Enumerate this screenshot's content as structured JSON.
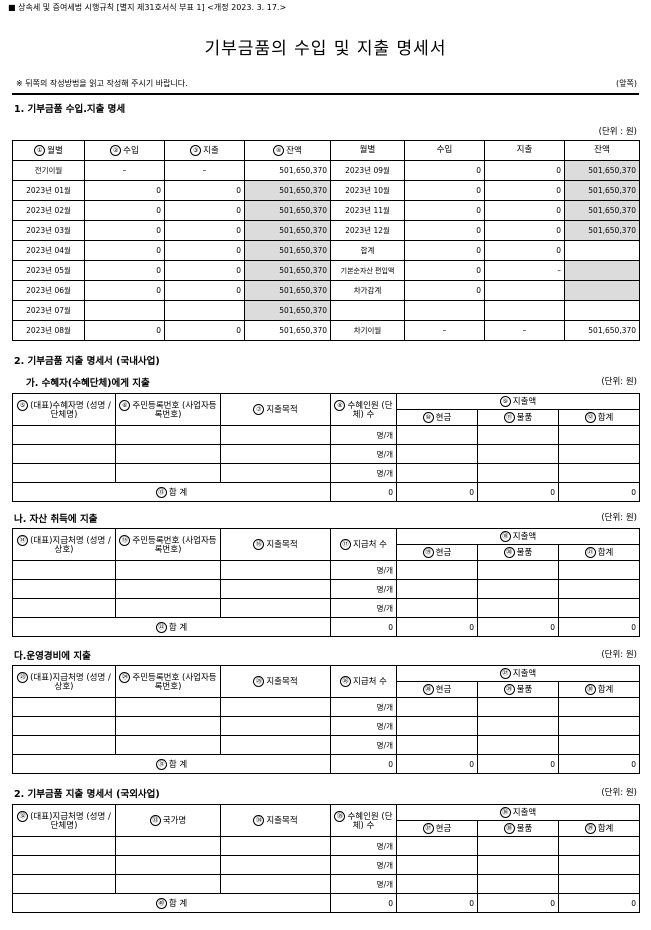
{
  "header": {
    "legal_ref": "■ 상속세 및 증여세법 시행규칙 [별지 제31호서식 부표 1] <개정 2023. 3. 17.>",
    "title": "기부금품의 수입 및 지출 명세서",
    "note": "※ 뒤쪽의 작성방법을 읽고 작성해 주시기 바랍니다.",
    "page_side": "(앞쪽)"
  },
  "s1": {
    "title": "1. 기부금품 수입.지출 명세",
    "unit": "(단위 : 원)",
    "cols": [
      {
        "n": "①",
        "t": "월별"
      },
      {
        "n": "②",
        "t": "수입"
      },
      {
        "n": "③",
        "t": "지출"
      },
      {
        "n": "④",
        "t": "잔액"
      },
      {
        "n": "",
        "t": "월별"
      },
      {
        "n": "",
        "t": "수입"
      },
      {
        "n": "",
        "t": "지출"
      },
      {
        "n": "",
        "t": "잔액"
      }
    ],
    "rows": [
      [
        "전기이월",
        "–",
        "–",
        "501,650,370",
        "2023년 09월",
        "0",
        "0",
        "501,650,370"
      ],
      [
        "2023년 01월",
        "0",
        "0",
        "501,650,370",
        "2023년 10월",
        "0",
        "0",
        "501,650,370"
      ],
      [
        "2023년 02월",
        "0",
        "0",
        "501,650,370",
        "2023년 11월",
        "0",
        "0",
        "501,650,370"
      ],
      [
        "2023년 03월",
        "0",
        "0",
        "501,650,370",
        "2023년 12월",
        "0",
        "0",
        "501,650,370"
      ],
      [
        "2023년 04월",
        "0",
        "0",
        "501,650,370",
        "합계",
        "0",
        "0",
        ""
      ],
      [
        "2023년 05월",
        "0",
        "0",
        "501,650,370",
        "기본순자산 편입액",
        "0",
        "–",
        ""
      ],
      [
        "2023년 06월",
        "0",
        "0",
        "501,650,370",
        "차가감계",
        "0",
        "",
        ""
      ],
      [
        "2023년 07월",
        "",
        "",
        "501,650,370",
        "",
        "",
        "",
        ""
      ],
      [
        "2023년 08월",
        "0",
        "0",
        "501,650,370",
        "차기이월",
        "–",
        "–",
        "501,650,370"
      ]
    ]
  },
  "s2": {
    "title": "2. 기부금품 지출 명세서 (국내사업)"
  },
  "ga": {
    "title": "가. 수혜자(수혜단체)에게 지출",
    "unit": "(단위: 원)",
    "h": [
      {
        "n": "⑤",
        "t": "(대표)수혜자명 (성명 / 단체명)"
      },
      {
        "n": "⑥",
        "t": "주민등록번호 (사업자등록번호)"
      },
      {
        "n": "⑦",
        "t": "지출목적"
      },
      {
        "n": "⑧",
        "t": "수혜인원 (단체) 수"
      }
    ],
    "amt": {
      "n": "⑨",
      "t": "지출액"
    },
    "sub": [
      {
        "n": "⑩",
        "t": "현금"
      },
      {
        "n": "⑪",
        "t": "물품"
      },
      {
        "n": "⑫",
        "t": "합계"
      }
    ],
    "per": "명/개",
    "total": {
      "n": "⑬",
      "t": "합 계"
    },
    "tv": [
      "0",
      "0",
      "0",
      "0"
    ]
  },
  "na": {
    "title": "나. 자산 취득에 지출",
    "unit": "(단위: 원)",
    "h": [
      {
        "n": "⑭",
        "t": "(대표)지급처명 (성명 / 상호)"
      },
      {
        "n": "⑮",
        "t": "주민등록번호 (사업자등록번호)"
      },
      {
        "n": "⑯",
        "t": "지출목적"
      },
      {
        "n": "⑰",
        "t": "지급처 수"
      }
    ],
    "amt": {
      "n": "⑱",
      "t": "지출액"
    },
    "sub": [
      {
        "n": "⑲",
        "t": "현금"
      },
      {
        "n": "⑳",
        "t": "물품"
      },
      {
        "n": "㉑",
        "t": "합계"
      }
    ],
    "per": "명/개",
    "total": {
      "n": "㉒",
      "t": "합 계"
    },
    "tv": [
      "0",
      "0",
      "0",
      "0"
    ]
  },
  "da": {
    "title": "다.운영경비에 지출",
    "unit": "(단위: 원)",
    "h": [
      {
        "n": "㉓",
        "t": "(대표)지급처명 (성명 / 상호)"
      },
      {
        "n": "㉔",
        "t": "주민등록번호 (사업자등록번호)"
      },
      {
        "n": "㉕",
        "t": "지출목적"
      },
      {
        "n": "㉖",
        "t": "지급처 수"
      }
    ],
    "amt": {
      "n": "㉗",
      "t": "지출액"
    },
    "sub": [
      {
        "n": "㉘",
        "t": "현금"
      },
      {
        "n": "㉙",
        "t": "물품"
      },
      {
        "n": "㉚",
        "t": "합계"
      }
    ],
    "per": "명/개",
    "total": {
      "n": "㉛",
      "t": "합 계"
    },
    "tv": [
      "0",
      "0",
      "0",
      "0"
    ]
  },
  "s3": {
    "title": "2. 기부금품 지출 명세서 (국외사업)",
    "unit": "(단위: 원)",
    "h": [
      {
        "n": "㉜",
        "t": "(대표)지급처명 (성명 / 단체명)"
      },
      {
        "n": "㉝",
        "t": "국가명"
      },
      {
        "n": "㉞",
        "t": "지출목적"
      },
      {
        "n": "㉟",
        "t": "수혜인원 (단체) 수"
      }
    ],
    "amt": {
      "n": "㊱",
      "t": "지출액"
    },
    "sub": [
      {
        "n": "㊲",
        "t": "현금"
      },
      {
        "n": "㊳",
        "t": "물품"
      },
      {
        "n": "㊴",
        "t": "합계"
      }
    ],
    "per": "명/개",
    "total": {
      "n": "㊵",
      "t": "합 계"
    },
    "tv": [
      "0",
      "0",
      "0",
      "0"
    ]
  }
}
